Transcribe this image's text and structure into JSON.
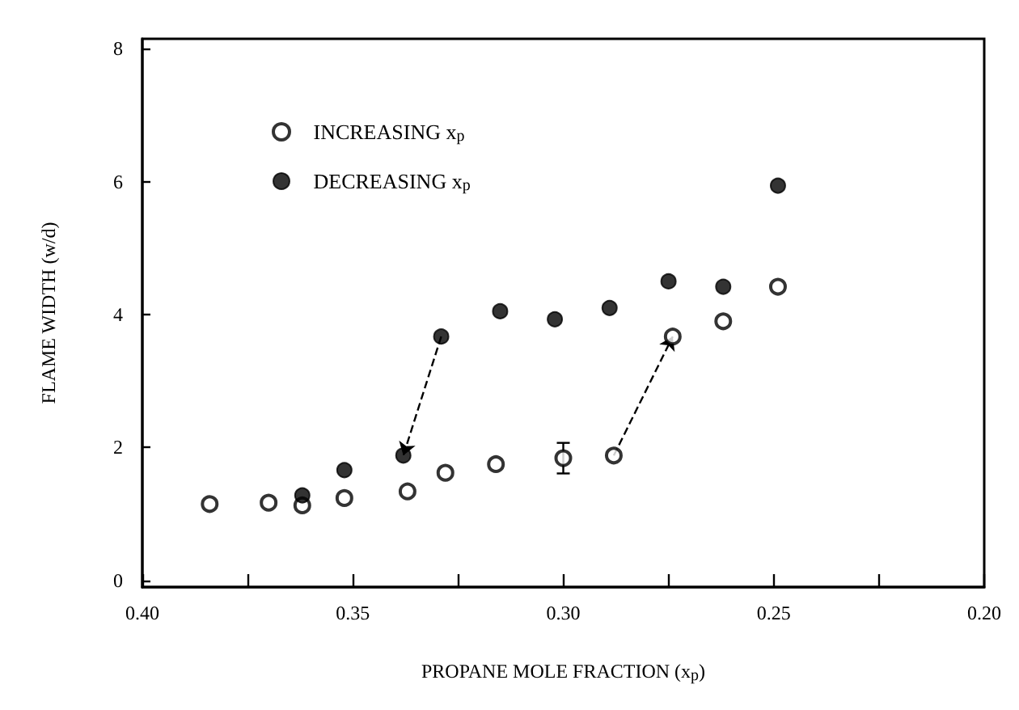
{
  "chart_data": {
    "type": "scatter",
    "xlabel": "PROPANE MOLE FRACTION (x$_{p}$)",
    "ylabel": "FLAME WIDTH (w/d)",
    "xlim": [
      0.4,
      0.2
    ],
    "ylim": [
      -0.1,
      8.15
    ],
    "xticks": [
      {
        "value": 0.4,
        "label": "0.40"
      },
      {
        "value": 0.375,
        "label": null
      },
      0.35,
      {
        "value": 0.325,
        "label": null
      },
      {
        "value": 0.3,
        "label": "0.30"
      },
      {
        "value": 0.275,
        "label": null
      },
      0.25,
      {
        "value": 0.225,
        "label": null
      },
      {
        "value": 0.2,
        "label": "0.20"
      }
    ],
    "yticks": [
      0,
      2,
      4,
      6,
      8
    ],
    "grid": false,
    "legend": "top left",
    "series": [
      {
        "name": "INCREASING x$_{p}$",
        "color": "#000000",
        "marker": "circle",
        "x": [
          0.384,
          0.37,
          0.362,
          0.352,
          0.337,
          0.328,
          0.316,
          0.3,
          0.288,
          0.274,
          0.262,
          0.249
        ],
        "values": [
          1.15,
          1.17,
          1.13,
          1.24,
          1.34,
          1.62,
          1.75,
          1.84,
          1.88,
          3.67,
          3.9,
          4.42
        ],
        "errors": [
          null,
          null,
          null,
          null,
          null,
          null,
          null,
          0.23,
          null,
          null,
          null,
          null
        ]
      },
      {
        "name": "DECREASING x$_{p}$",
        "color": "#000000",
        "marker": "circle",
        "x": [
          0.362,
          0.352,
          0.338,
          0.329,
          0.315,
          0.302,
          0.289,
          0.275,
          0.262,
          0.249
        ],
        "values": [
          1.28,
          1.66,
          1.88,
          3.67,
          4.05,
          3.93,
          4.1,
          4.5,
          4.42,
          5.94
        ]
      }
    ]
  }
}
